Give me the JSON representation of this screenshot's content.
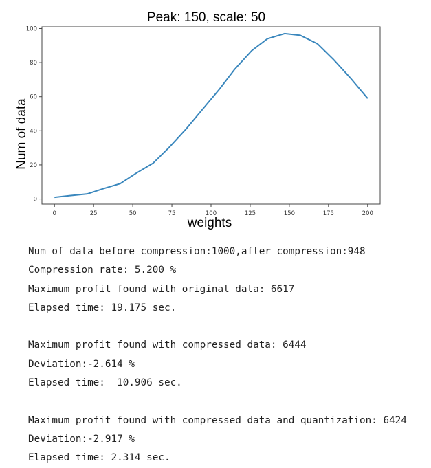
{
  "chart_data": {
    "type": "line",
    "title": "Peak: 150,  scale: 50",
    "xlabel": "weights",
    "ylabel": "Num of data",
    "xlim": [
      -8,
      208
    ],
    "ylim": [
      -3,
      101
    ],
    "xticks": [
      0,
      25,
      50,
      75,
      100,
      125,
      150,
      175,
      200
    ],
    "yticks": [
      0,
      20,
      40,
      60,
      80,
      100
    ],
    "grid": false,
    "series": [
      {
        "color": "#3a87bd",
        "x": [
          0,
          10,
          21,
          31,
          42,
          52,
          63,
          73,
          78,
          84,
          94,
          105,
          115,
          126,
          136,
          147,
          157,
          168,
          178,
          189,
          200
        ],
        "y": [
          1,
          2,
          3,
          6,
          9,
          15,
          21,
          30,
          35,
          41,
          52,
          64,
          76,
          87,
          94,
          97,
          96,
          91,
          82,
          71,
          59
        ]
      }
    ]
  },
  "output": {
    "block1": [
      "Num of data before compression:1000,after compression:948",
      "Compression rate: 5.200 %",
      "Maximum profit found with original data: 6617",
      "Elapsed time: 19.175 sec."
    ],
    "block2": [
      "Maximum profit found with compressed data: 6444",
      "Deviation:-2.614 %",
      "Elapsed time:  10.906 sec."
    ],
    "block3": [
      "Maximum profit found with compressed data and quantization: 6424",
      "Deviation:-2.917 %",
      "Elapsed time: 2.314 sec."
    ]
  }
}
